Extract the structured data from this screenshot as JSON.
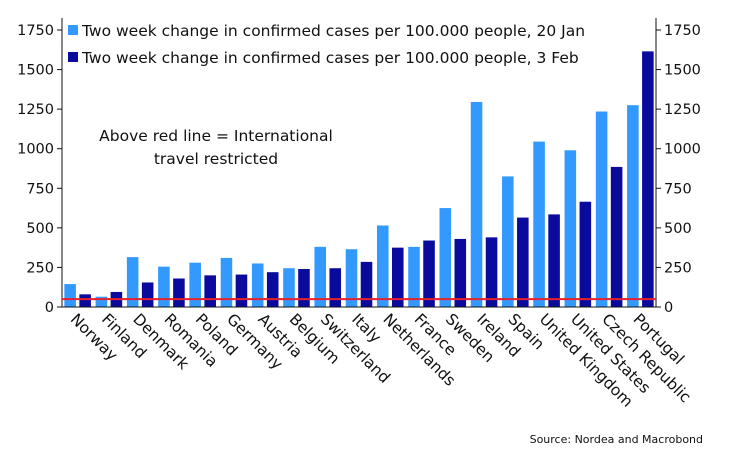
{
  "chart_data": {
    "type": "bar",
    "categories": [
      "Norway",
      "Finland",
      "Denmark",
      "Romania",
      "Poland",
      "Germany",
      "Austria",
      "Belgium",
      "Switzerland",
      "Italy",
      "Netherlands",
      "France",
      "Sweden",
      "Ireland",
      "Spain",
      "United Kingdom",
      "United States",
      "Czech Republic",
      "Portugal"
    ],
    "series": [
      {
        "name": "Two week change in confirmed cases per 100.000 people, 20 Jan",
        "color": "#3399ff",
        "values": [
          145,
          65,
          315,
          255,
          280,
          310,
          275,
          245,
          380,
          365,
          515,
          380,
          625,
          1295,
          825,
          1045,
          990,
          1235,
          1275
        ]
      },
      {
        "name": "Two week change in confirmed cases per 100.000 people, 3 Feb",
        "color": "#0a0a9c",
        "values": [
          80,
          95,
          155,
          180,
          200,
          205,
          220,
          240,
          245,
          285,
          375,
          420,
          430,
          440,
          565,
          585,
          665,
          885,
          1615
        ]
      }
    ],
    "ylim": [
      0,
      1750
    ],
    "yticks": [
      0,
      250,
      500,
      750,
      1000,
      1250,
      1500,
      1750
    ],
    "threshold": {
      "value": 50,
      "color": "#e8202a"
    },
    "annotation": [
      "Above red line = International",
      "travel restricted"
    ],
    "source": "Source: Nordea and Macrobond",
    "legend_position": "top-left",
    "grid": false
  }
}
